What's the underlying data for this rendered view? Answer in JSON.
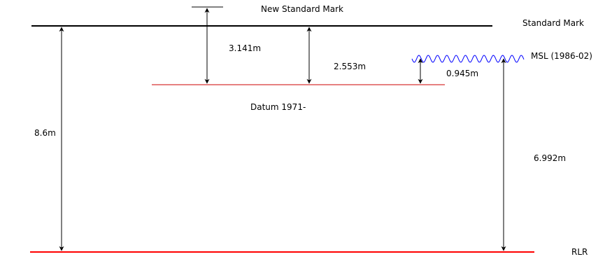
{
  "labels": {
    "new_standard_mark": "New Standard Mark",
    "standard_mark": "Standard Mark",
    "msl": "MSL (1986-02)",
    "datum": "Datum 1971-",
    "rlr": "RLR"
  },
  "measurements": {
    "standard_to_rlr": "8.6m",
    "new_mark_to_datum": "3.141m",
    "standard_to_datum": "2.553m",
    "msl_to_datum": "0.945m",
    "msl_to_rlr": "6.992m"
  },
  "colors": {
    "standard_line": "#000000",
    "datum_line": "#cc0000",
    "rlr_line": "#ff0000",
    "msl_wave": "#0000ff",
    "arrows": "#000000"
  }
}
